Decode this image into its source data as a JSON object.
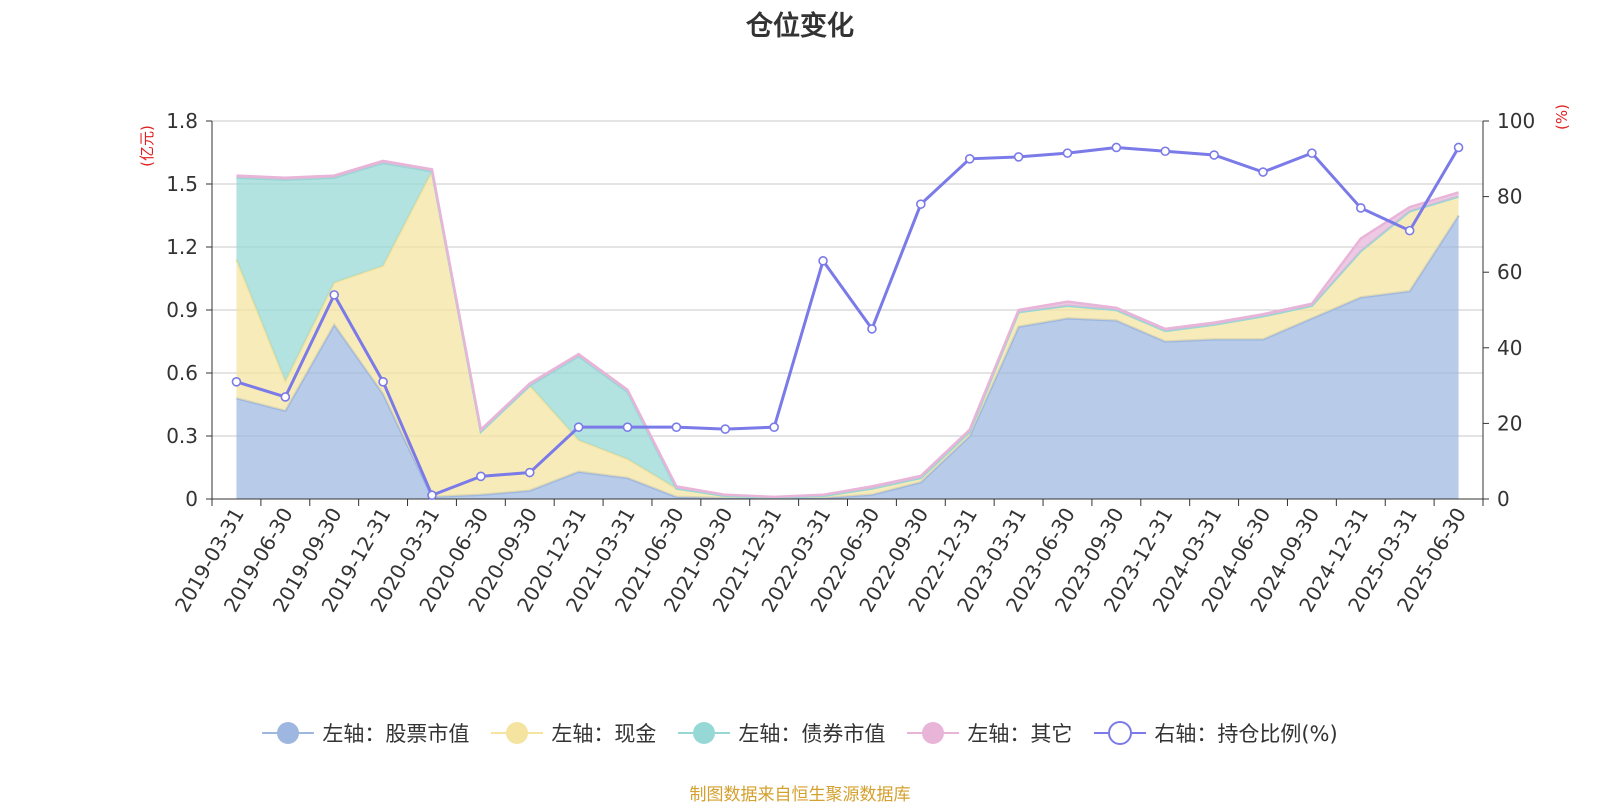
{
  "chart_data": {
    "type": "area",
    "title": "仓位变化",
    "y_left_label": "(亿元)",
    "y_right_label": "(%)",
    "y_left_range": [
      0,
      1.8
    ],
    "y_left_ticks": [
      "0",
      "0.3",
      "0.6",
      "0.9",
      "1.2",
      "1.5",
      "1.8"
    ],
    "y_right_range": [
      0,
      100
    ],
    "y_right_ticks": [
      "0",
      "20",
      "40",
      "60",
      "80",
      "100"
    ],
    "categories": [
      "2019-03-31",
      "2019-06-30",
      "2019-09-30",
      "2019-12-31",
      "2020-03-31",
      "2020-06-30",
      "2020-09-30",
      "2020-12-31",
      "2021-03-31",
      "2021-06-30",
      "2021-09-30",
      "2021-12-31",
      "2022-03-31",
      "2022-06-30",
      "2022-09-30",
      "2022-12-31",
      "2023-03-31",
      "2023-06-30",
      "2023-09-30",
      "2023-12-31",
      "2024-03-31",
      "2024-06-30",
      "2024-09-30",
      "2024-12-31",
      "2025-03-31",
      "2025-06-30"
    ],
    "series": [
      {
        "name": "左轴：股票市值",
        "axis": "left",
        "color": "#9db7e0",
        "values": [
          0.48,
          0.42,
          0.83,
          0.5,
          0.01,
          0.02,
          0.04,
          0.13,
          0.1,
          0.01,
          0.005,
          0.005,
          0.005,
          0.02,
          0.08,
          0.3,
          0.82,
          0.86,
          0.85,
          0.75,
          0.76,
          0.76,
          0.86,
          0.96,
          0.99,
          1.35
        ]
      },
      {
        "name": "左轴：现金",
        "axis": "left",
        "color": "#f5e3a0",
        "values": [
          0.66,
          0.14,
          0.2,
          0.61,
          1.55,
          0.3,
          0.5,
          0.15,
          0.09,
          0.04,
          0.01,
          0.002,
          0.01,
          0.03,
          0.02,
          0.02,
          0.07,
          0.06,
          0.05,
          0.05,
          0.07,
          0.11,
          0.06,
          0.22,
          0.38,
          0.09
        ]
      },
      {
        "name": "左轴：债券市值",
        "axis": "left",
        "color": "#96d8d6",
        "values": [
          0.39,
          0.96,
          0.5,
          0.49,
          0,
          0,
          0,
          0.4,
          0.32,
          0,
          0,
          0,
          0,
          0,
          0,
          0,
          0,
          0,
          0,
          0,
          0,
          0,
          0,
          0,
          0,
          0
        ]
      },
      {
        "name": "左轴：其它",
        "axis": "left",
        "color": "#e8b4d8",
        "values": [
          0.01,
          0.01,
          0.01,
          0.01,
          0.01,
          0.01,
          0.01,
          0.01,
          0.01,
          0.01,
          0.005,
          0.003,
          0.005,
          0.01,
          0.01,
          0.01,
          0.01,
          0.02,
          0.01,
          0.01,
          0.01,
          0.01,
          0.01,
          0.06,
          0.02,
          0.02
        ]
      },
      {
        "name": "右轴：持仓比例(%)",
        "axis": "right",
        "color": "#7a7ae8",
        "values": [
          31,
          27,
          54,
          31,
          1,
          6,
          7,
          19,
          19,
          19,
          18.5,
          19,
          63,
          45,
          78,
          90,
          90.5,
          91.5,
          93,
          92,
          91,
          86.5,
          91.5,
          77,
          71,
          93
        ]
      }
    ],
    "grid": true,
    "legend_position": "bottom"
  },
  "source_note": "制图数据来自恒生聚源数据库"
}
